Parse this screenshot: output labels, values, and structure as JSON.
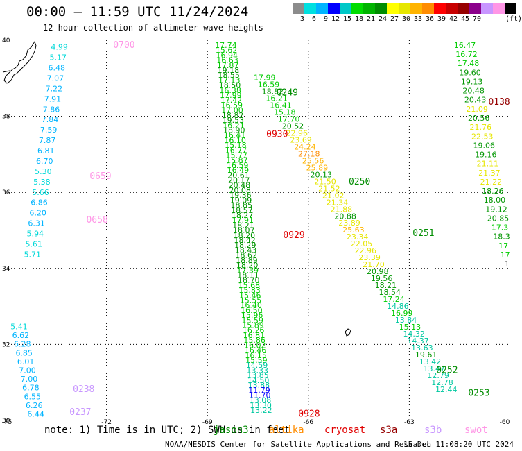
{
  "header": {
    "title": "00:00 – 11:59 UTC 11/24/2024",
    "subtitle": "12 hour collection of altimeter wave heights"
  },
  "scale": {
    "colors": [
      "#8c8c8c",
      "#00e0e0",
      "#00b4ff",
      "#0000ff",
      "#00c8c8",
      "#00dc00",
      "#00b400",
      "#008c00",
      "#ffff00",
      "#e6e600",
      "#ffb400",
      "#ff8c00",
      "#ff0000",
      "#c80000",
      "#960000",
      "#8b008b",
      "#c896ff",
      "#ff96e6",
      "#000000"
    ],
    "labels": [
      "3",
      "6",
      "9",
      "12",
      "15",
      "18",
      "21",
      "24",
      "27",
      "30",
      "33",
      "36",
      "39",
      "42",
      "45",
      "70"
    ],
    "unit": "(ft)"
  },
  "footer": {
    "note": "note: 1) Time is in UTC; 2) SWH is in feet",
    "satellites": [
      {
        "name": "jason3",
        "color": "#008c00"
      },
      {
        "name": "altika",
        "color": "#ff8c00"
      },
      {
        "name": "cryosat",
        "color": "#e00000"
      },
      {
        "name": "s3a",
        "color": "#960000"
      },
      {
        "name": "s3b",
        "color": "#c896ff"
      },
      {
        "name": "swot",
        "color": "#ff96e6"
      }
    ],
    "credit": "NOAA/NESDIS Center for Satellite Applications and Research",
    "stamp": "15 Dec 11:08:20 UTC 2024"
  },
  "chart_data": {
    "type": "scatter",
    "title": "00:00 – 11:59 UTC 11/24/2024",
    "subtitle": "12 hour collection of altimeter wave heights",
    "xlabel": "",
    "ylabel": "",
    "xlim": [
      -75,
      -60
    ],
    "ylim": [
      30,
      40
    ],
    "grid": true,
    "x_ticks": [
      "-75",
      "-72",
      "-69",
      "-66",
      "-63",
      "-60"
    ],
    "y_ticks": [
      "40",
      "38",
      "36",
      "34",
      "32",
      "30"
    ],
    "tracks": [
      {
        "values": [
          "4.99",
          "5.17",
          "6.48",
          "7.07",
          "7.22",
          "7.91",
          "7.86",
          "7.84",
          "7.59",
          "7.87",
          "6.81",
          "6.70",
          "5.30",
          "5.38",
          "5.66",
          "6.86",
          "6.20",
          "6.31",
          "5.94",
          "5.61",
          "5.71"
        ],
        "start": [
          -73.4,
          39.75
        ],
        "end": [
          -74.2,
          34.3
        ]
      },
      {
        "values": [
          "5.41",
          "6.62",
          "6.28",
          "6.85",
          "6.01",
          "7.00",
          "7.00",
          "6.78",
          "6.55",
          "6.26",
          "6.44"
        ],
        "start": [
          -74.6,
          32.4
        ],
        "end": [
          -74.1,
          30.1
        ]
      },
      {
        "values": [
          "17.74",
          "15.62",
          "16.94",
          "16.63",
          "17.87",
          "19.18",
          "18.55",
          "17.13",
          "18.50",
          "16.38",
          "17.99",
          "17.42",
          "16.59",
          "17.00",
          "18.82",
          "19.53",
          "16.21",
          "18.90",
          "16.41",
          "16.10",
          "15.18",
          "16.77",
          "15.77",
          "15.87",
          "16.59",
          "16.49",
          "20.61",
          "20.17",
          "20.48",
          "20.08",
          "19.36",
          "19.09",
          "18.85",
          "18.57",
          "18.27",
          "17.91",
          "18.21",
          "18.07",
          "18.20",
          "18.42",
          "18.29",
          "18.43",
          "18.62",
          "18.89",
          "18.20",
          "17.39",
          "18.11",
          "18.70",
          "15.68",
          "15.83",
          "15.46",
          "15.55",
          "16.40",
          "16.50",
          "15.96",
          "15.59",
          "15.89",
          "16.26",
          "16.81",
          "15.86",
          "16.02",
          "16.46",
          "16.15",
          "15.59",
          "14.59",
          "13.33",
          "13.85",
          "14.50",
          "13.88",
          "11.79",
          "11.70",
          "13.08",
          "13.30",
          "13.22"
        ],
        "start": [
          -68.45,
          39.8
        ],
        "end": [
          -67.4,
          30.2
        ]
      },
      {
        "values": [
          "17.99",
          "16.59",
          "18.82",
          "16.21",
          "16.41",
          "15.18",
          "17.70",
          "20.52",
          "22.96",
          "23.69",
          "24.24",
          "27.18",
          "25.56",
          "25.89",
          "20.13",
          "21.50",
          "21.52",
          "21.02",
          "21.34",
          "21.88",
          "20.88",
          "23.89",
          "25.63",
          "23.34",
          "22.05",
          "22.96",
          "23.39",
          "21.70",
          "20.98",
          "19.56",
          "18.21",
          "18.54",
          "17.24",
          "14.86",
          "16.99",
          "13.84",
          "15.13",
          "14.32",
          "14.37",
          "13.63",
          "19.61",
          "13.42",
          "13.47",
          "12.79",
          "12.78",
          "12.44"
        ],
        "start": [
          -67.3,
          38.95
        ],
        "end": [
          -61.9,
          30.75
        ]
      },
      {
        "values": [
          "16.47",
          "16.72",
          "17.48",
          "19.60",
          "19.13",
          "20.48",
          "20.43",
          "21.09",
          "20.56",
          "21.76",
          "22.53",
          "19.06",
          "19.16",
          "21.11",
          "21.37",
          "21.22",
          "18.26",
          "18.00",
          "19.12",
          "20.85",
          "17.3",
          "18.3",
          "17",
          "17",
          "1"
        ],
        "start": [
          -61.35,
          39.8
        ],
        "end": [
          -60.1,
          34.05
        ]
      }
    ],
    "time_labels": [
      {
        "text": "0700",
        "lon": -71.8,
        "lat": 39.8,
        "color": "#ff96e6"
      },
      {
        "text": "0659",
        "lon": -72.5,
        "lat": 36.35,
        "color": "#ff96e6"
      },
      {
        "text": "0658",
        "lon": -72.6,
        "lat": 35.2,
        "color": "#ff96e6"
      },
      {
        "text": "0238",
        "lon": -73.0,
        "lat": 30.75,
        "color": "#c896ff"
      },
      {
        "text": "0237",
        "lon": -73.1,
        "lat": 30.15,
        "color": "#c896ff"
      },
      {
        "text": "0249",
        "lon": -66.95,
        "lat": 38.55,
        "color": "#008c00"
      },
      {
        "text": "0930",
        "lon": -67.25,
        "lat": 37.45,
        "color": "#e00000"
      },
      {
        "text": "0250",
        "lon": -64.8,
        "lat": 36.2,
        "color": "#008c00"
      },
      {
        "text": "0929",
        "lon": -66.75,
        "lat": 34.8,
        "color": "#e00000"
      },
      {
        "text": "0251",
        "lon": -62.9,
        "lat": 34.85,
        "color": "#008c00"
      },
      {
        "text": "0252",
        "lon": -62.2,
        "lat": 31.25,
        "color": "#008c00"
      },
      {
        "text": "0253",
        "lon": -61.25,
        "lat": 30.65,
        "color": "#008c00"
      },
      {
        "text": "0928",
        "lon": -66.3,
        "lat": 30.1,
        "color": "#e00000"
      },
      {
        "text": "0138",
        "lon": -60.65,
        "lat": 38.3,
        "color": "#960000"
      }
    ]
  }
}
